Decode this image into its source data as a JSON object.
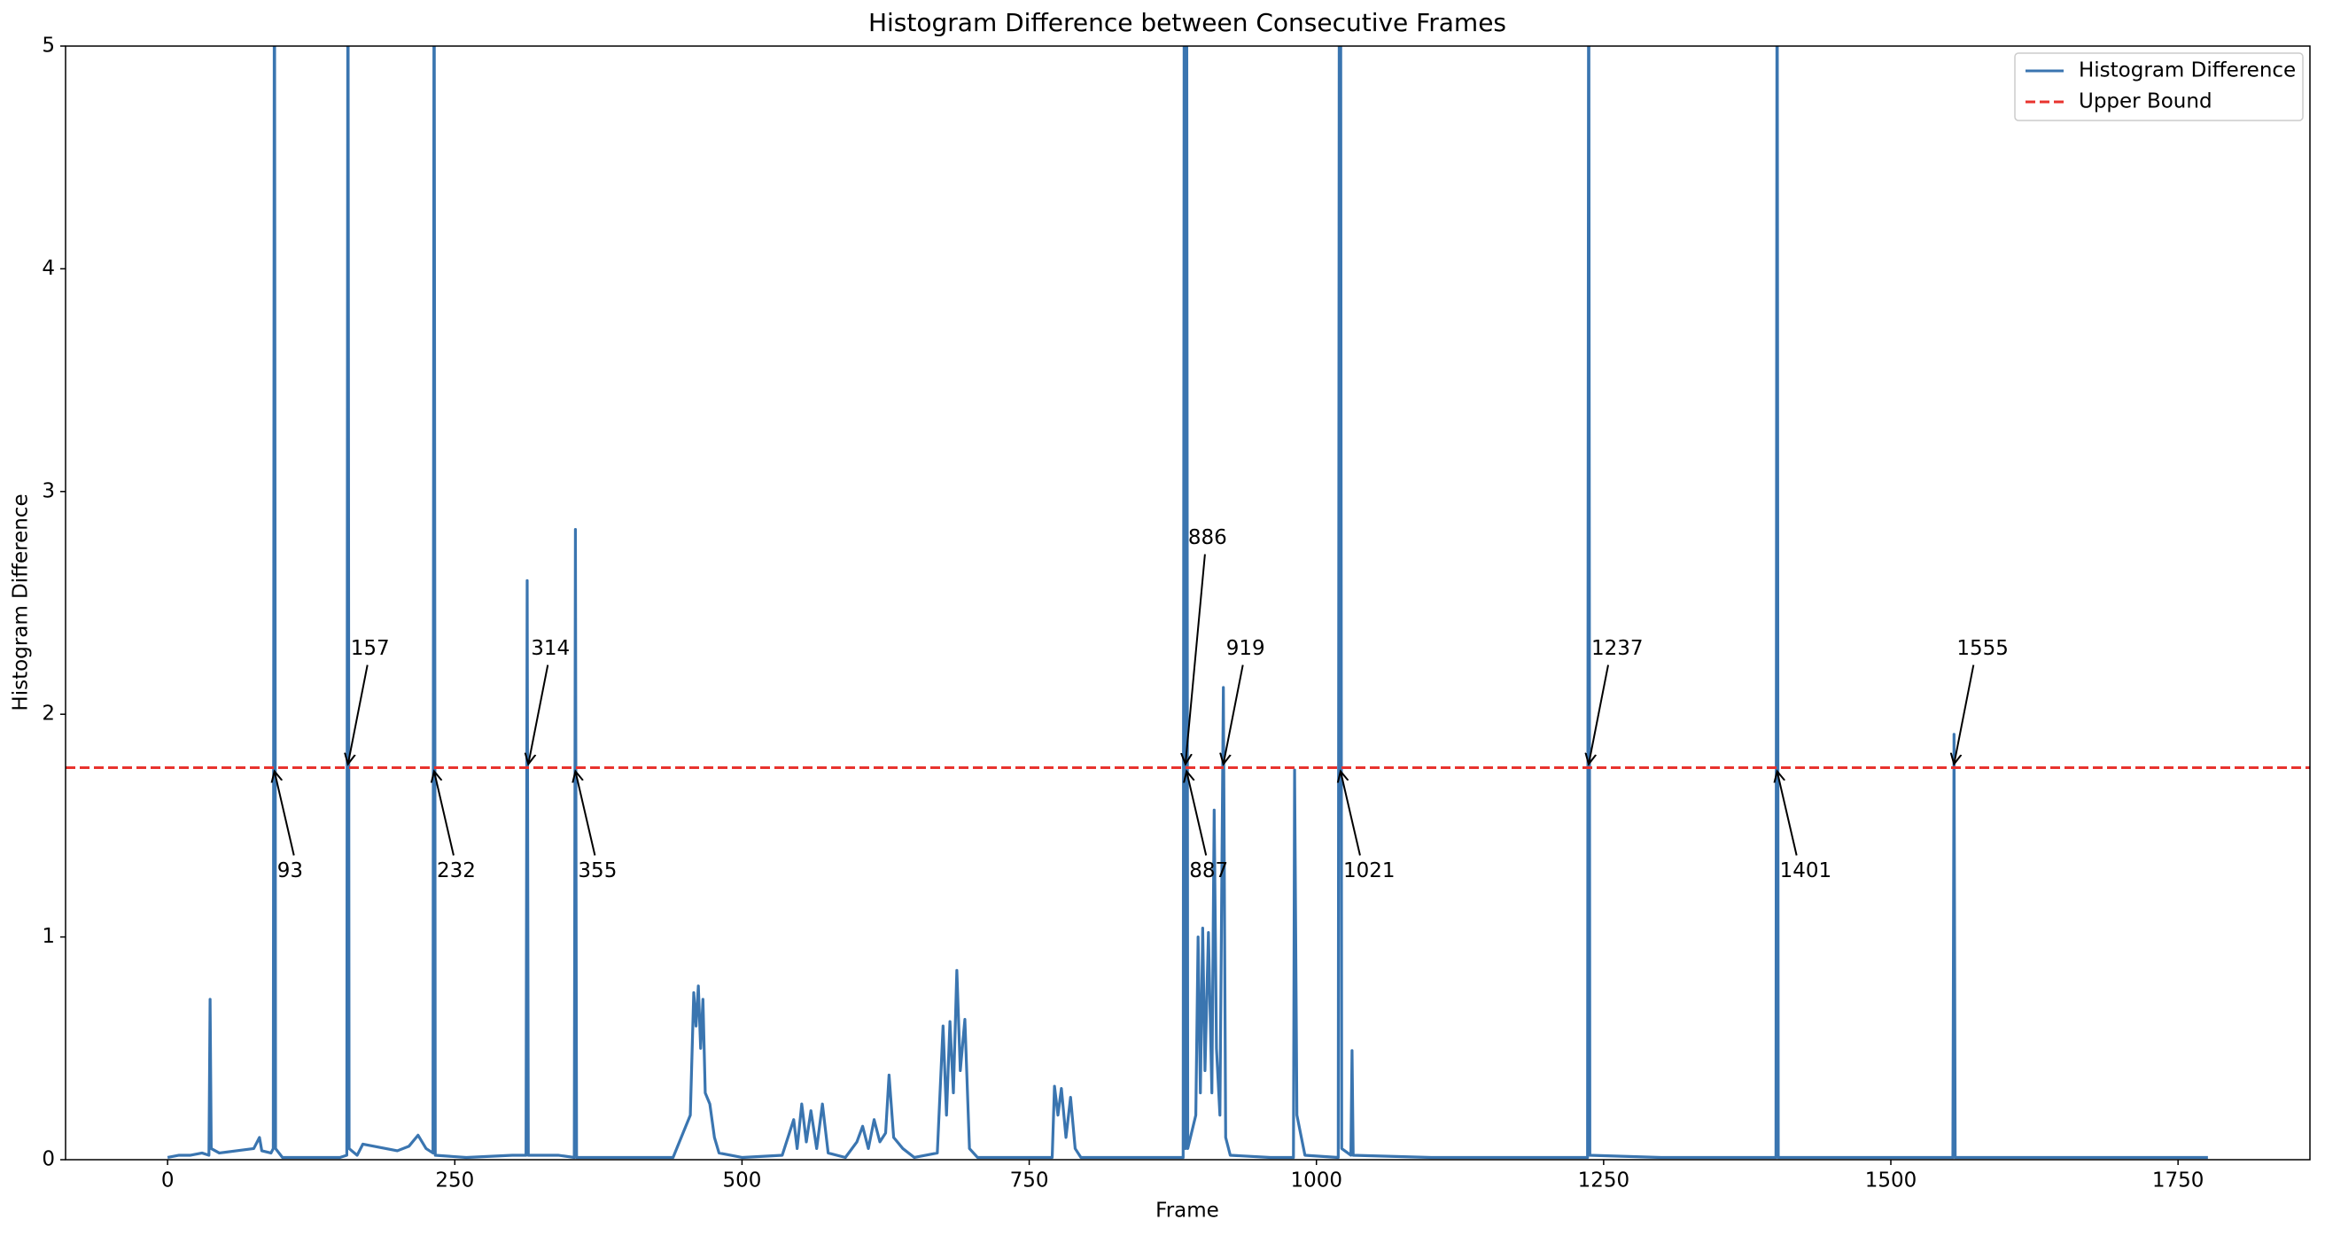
{
  "chart_data": {
    "type": "line",
    "title": "Histogram Difference between Consecutive Frames",
    "x_label": "Frame",
    "y_label": "Histogram Difference",
    "x": [
      0,
      10,
      20,
      30,
      36,
      37,
      38,
      45,
      60,
      75,
      80,
      82,
      90,
      92,
      93,
      94,
      100,
      130,
      150,
      156,
      157,
      158,
      165,
      170,
      180,
      190,
      200,
      210,
      218,
      225,
      231,
      232,
      233,
      260,
      300,
      312,
      313,
      314,
      340,
      354,
      355,
      356,
      400,
      440,
      455,
      458,
      460,
      462,
      464,
      466,
      468,
      472,
      476,
      480,
      500,
      535,
      540,
      545,
      548,
      552,
      556,
      560,
      565,
      570,
      575,
      590,
      600,
      605,
      610,
      615,
      620,
      625,
      628,
      632,
      640,
      650,
      670,
      675,
      678,
      681,
      684,
      687,
      690,
      694,
      698,
      705,
      770,
      772,
      775,
      778,
      782,
      786,
      790,
      795,
      850,
      884,
      885,
      886,
      887,
      888,
      895,
      897,
      899,
      901,
      903,
      906,
      909,
      911,
      913,
      916,
      919,
      921,
      925,
      960,
      980,
      981,
      983,
      990,
      1019,
      1020,
      1021,
      1022,
      1030,
      1031,
      1032,
      1100,
      1236,
      1237,
      1238,
      1300,
      1400,
      1401,
      1402,
      1554,
      1555,
      1556,
      1700,
      1776
    ],
    "series": [
      {
        "name": "Histogram Difference",
        "color": "#3a75b0",
        "values": [
          0.01,
          0.02,
          0.02,
          0.03,
          0.02,
          0.72,
          0.05,
          0.03,
          0.04,
          0.05,
          0.1,
          0.04,
          0.03,
          0.05,
          6,
          0.05,
          0.01,
          0.01,
          0.01,
          0.02,
          6,
          0.05,
          0.02,
          0.07,
          0.06,
          0.05,
          0.04,
          0.06,
          0.11,
          0.05,
          0.03,
          6,
          0.02,
          0.01,
          0.02,
          0.02,
          2.6,
          0.02,
          0.02,
          0.01,
          2.83,
          0.01,
          0.01,
          0.01,
          0.2,
          0.75,
          0.6,
          0.78,
          0.5,
          0.72,
          0.3,
          0.25,
          0.1,
          0.03,
          0.01,
          0.02,
          0.1,
          0.18,
          0.05,
          0.25,
          0.08,
          0.22,
          0.05,
          0.25,
          0.03,
          0.01,
          0.08,
          0.15,
          0.05,
          0.18,
          0.08,
          0.12,
          0.38,
          0.1,
          0.05,
          0.01,
          0.03,
          0.6,
          0.2,
          0.62,
          0.3,
          0.85,
          0.4,
          0.63,
          0.05,
          0.01,
          0.01,
          0.33,
          0.2,
          0.32,
          0.1,
          0.28,
          0.05,
          0.01,
          0.01,
          0.01,
          6,
          0.05,
          6,
          0.05,
          0.2,
          1.0,
          0.3,
          1.04,
          0.4,
          1.02,
          0.3,
          1.57,
          0.5,
          0.2,
          2.12,
          0.1,
          0.02,
          0.01,
          0.01,
          1.75,
          0.2,
          0.02,
          0.01,
          6,
          6,
          0.05,
          0.02,
          0.49,
          0.02,
          0.01,
          0.01,
          6,
          0.02,
          0.01,
          0.01,
          6,
          0.01,
          0.01,
          1.91,
          0.01,
          0.01,
          0.01
        ]
      }
    ],
    "upper_bound": {
      "name": "Upper Bound",
      "value": 1.76,
      "color": "#e8332e"
    },
    "annotations": [
      {
        "frame": 93,
        "placement": "below"
      },
      {
        "frame": 157,
        "placement": "above"
      },
      {
        "frame": 232,
        "placement": "below"
      },
      {
        "frame": 314,
        "placement": "above"
      },
      {
        "frame": 355,
        "placement": "below"
      },
      {
        "frame": 886,
        "placement": "above"
      },
      {
        "frame": 887,
        "placement": "below"
      },
      {
        "frame": 919,
        "placement": "above"
      },
      {
        "frame": 1021,
        "placement": "below"
      },
      {
        "frame": 1237,
        "placement": "above"
      },
      {
        "frame": 1401,
        "placement": "below"
      },
      {
        "frame": 1555,
        "placement": "above"
      }
    ],
    "xlim": [
      -88.8,
      1864.8
    ],
    "xticks": [
      0,
      250,
      500,
      750,
      1000,
      1250,
      1500,
      1750
    ],
    "ylim": [
      0,
      5
    ],
    "yticks": [
      0,
      1,
      2,
      3,
      4,
      5
    ],
    "legend": "upper right"
  }
}
